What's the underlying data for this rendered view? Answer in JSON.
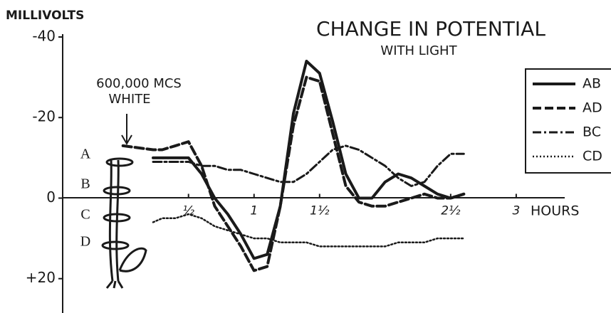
{
  "chart_data": {
    "type": "line",
    "title": "CHANGE IN POTENTIAL",
    "subtitle": "WITH LIGHT",
    "y_label": "MILLIVOLTS",
    "x_label": "HOURS",
    "annotation": [
      "600,000 MCS",
      "WHITE"
    ],
    "plant_labels": [
      "A",
      "B",
      "C",
      "D"
    ],
    "x": [
      0.0,
      0.23,
      0.3,
      0.4,
      0.5,
      0.6,
      0.7,
      0.8,
      0.9,
      1.0,
      1.1,
      1.2,
      1.3,
      1.4,
      1.5,
      1.6,
      1.7,
      1.8,
      1.9,
      2.0,
      2.1,
      2.2,
      2.3,
      2.4,
      2.5,
      2.6
    ],
    "xlim": [
      -0.46,
      3.37
    ],
    "xticks": [
      {
        "value": 0.5,
        "label": "½"
      },
      1,
      {
        "value": 1.5,
        "label": "1½"
      },
      {
        "value": 2.5,
        "label": "2½"
      },
      3
    ],
    "ylim": [
      -40,
      28
    ],
    "y_inverted": true,
    "yticks": [
      -40,
      -20,
      0,
      {
        "value": 20,
        "label": "+20"
      }
    ],
    "legend_position": "right",
    "series": [
      {
        "name": "AB",
        "color": "#1a1a1a",
        "style": "solid",
        "values": [
          null,
          -10,
          -10,
          -10,
          -10,
          -6,
          0,
          4,
          9,
          15,
          14,
          2,
          -21,
          -34,
          -31,
          -19,
          -6,
          0,
          0,
          -4,
          -6,
          -5,
          -3,
          -1,
          0,
          -1
        ]
      },
      {
        "name": "AD",
        "color": "#1a1a1a",
        "style": "dashed",
        "values": [
          -13,
          -12,
          -12,
          -13,
          -14,
          -8,
          2,
          7,
          12,
          18,
          17,
          2,
          -18,
          -30,
          -29,
          -16,
          -3,
          1,
          2,
          2,
          1,
          0,
          -1,
          0,
          0,
          -1
        ]
      },
      {
        "name": "BC",
        "color": "#1a1a1a",
        "style": "dashdot",
        "values": [
          null,
          -9,
          -9,
          -9,
          -9,
          -8,
          -8,
          -7,
          -7,
          -6,
          -5,
          -4,
          -4,
          -6,
          -9,
          -12,
          -13,
          -12,
          -10,
          -8,
          -5,
          -3,
          -4,
          -8,
          -11,
          -11
        ]
      },
      {
        "name": "CD",
        "color": "#1a1a1a",
        "style": "dotted",
        "values": [
          null,
          6,
          5,
          5,
          4,
          5,
          7,
          8,
          9,
          10,
          10,
          11,
          11,
          11,
          12,
          12,
          12,
          12,
          12,
          12,
          11,
          11,
          11,
          10,
          10,
          10
        ]
      }
    ]
  }
}
